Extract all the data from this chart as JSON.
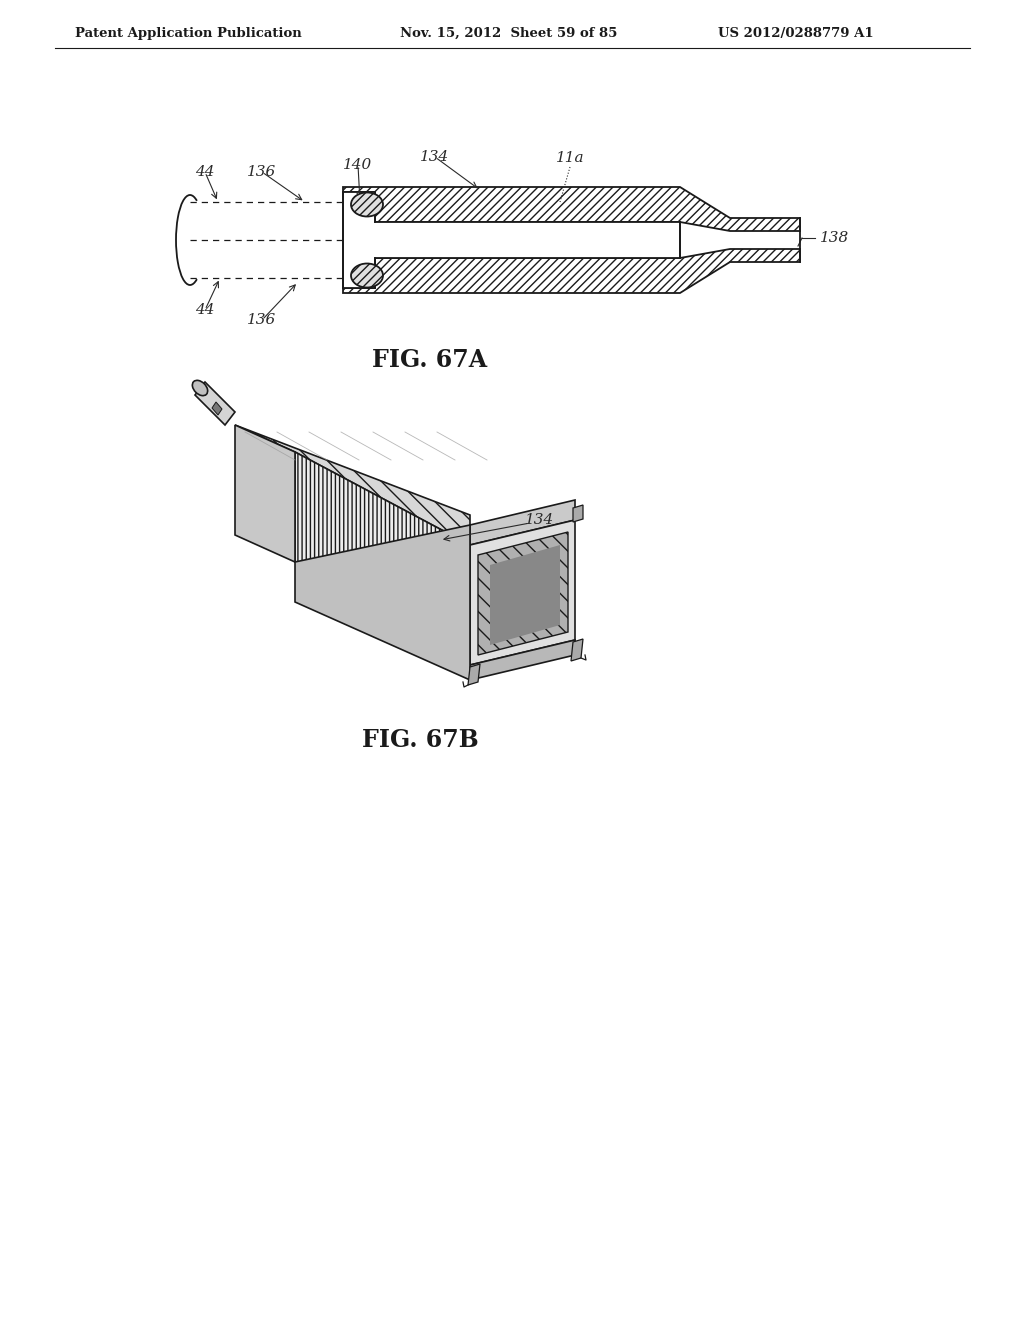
{
  "background_color": "#ffffff",
  "header_left": "Patent Application Publication",
  "header_mid": "Nov. 15, 2012  Sheet 59 of 85",
  "header_right": "US 2012/0288779 A1",
  "fig_label_A": "FIG. 67A",
  "fig_label_B": "FIG. 67B",
  "line_color": "#1a1a1a",
  "label_color": "#2a2a2a",
  "header_fontsize": 9.5,
  "fig_label_fontsize": 17,
  "annotation_fontsize": 11
}
